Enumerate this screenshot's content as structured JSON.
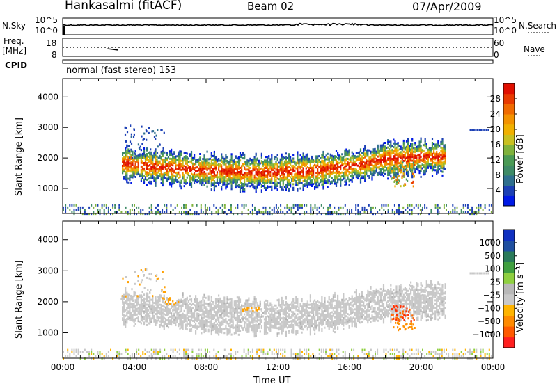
{
  "header": {
    "station": "Hankasalmi (fitACF)",
    "beam": "Beam 02",
    "date": "07/Apr/2009"
  },
  "top_panels": {
    "nsky_label": "N.Sky",
    "nsky_ticks": [
      "10^5",
      "10^0"
    ],
    "nsearch_label": "N.Search",
    "nsearch_ticks": [
      "10^5",
      "10^0"
    ],
    "freq_label": "Freq.",
    "freq_unit": "[MHz]",
    "freq_ticks": [
      "18",
      "8"
    ],
    "nave_label": "Nave",
    "nave_ticks": [
      "60",
      "0"
    ],
    "cpid_label": "CPID",
    "cpid_value": "normal (fast stereo) 153"
  },
  "colors": {
    "power_scale": [
      "#0019e6",
      "#1c40b5",
      "#2f6f8e",
      "#3e8a66",
      "#4a9a55",
      "#7fb23c",
      "#c8c020",
      "#f0b000",
      "#f39200",
      "#f06a00",
      "#e83a00",
      "#e00f00"
    ],
    "velocity_scale": [
      "#ff1f1f",
      "#ff5a00",
      "#ff8a00",
      "#ffb400",
      "#c8c8c8",
      "#b8b8b8",
      "#8fd040",
      "#40a040",
      "#2a7a5a",
      "#1f4fa0",
      "#1030c0"
    ]
  },
  "chart_data": [
    {
      "type": "heatmap",
      "panel": "power",
      "title": "",
      "ylabel": "Slant Range [km]",
      "xlabel": "",
      "y_ticks": [
        "1000",
        "2000",
        "3000",
        "4000"
      ],
      "ylim": [
        180,
        4600
      ],
      "colorbar_label": "Power [dB]",
      "colorbar_ticks": [
        "28",
        "24",
        "20",
        "16",
        "12",
        "8",
        "4"
      ],
      "colorbar_range": [
        0,
        32
      ],
      "echo_band": {
        "center_km": [
          [
            3.5,
            1850
          ],
          [
            5,
            1750
          ],
          [
            8,
            1620
          ],
          [
            11,
            1550
          ],
          [
            14,
            1620
          ],
          [
            16,
            1760
          ],
          [
            18,
            2000
          ],
          [
            19.5,
            2050
          ],
          [
            21.3,
            2080
          ]
        ],
        "width_km": 500
      }
    },
    {
      "type": "heatmap",
      "panel": "velocity",
      "title": "",
      "ylabel": "Slant Range [km]",
      "xlabel": "Time UT",
      "x_ticks": [
        "00:00",
        "04:00",
        "08:00",
        "12:00",
        "16:00",
        "20:00",
        "00:00"
      ],
      "y_ticks": [
        "1000",
        "2000",
        "3000",
        "4000"
      ],
      "ylim": [
        180,
        4600
      ],
      "xlim": [
        0,
        24
      ],
      "colorbar_label": "Velocity [m s⁻¹]",
      "colorbar_ticks": [
        "1000",
        "500",
        "100",
        "25",
        "−25",
        "−100",
        "−500",
        "−1000"
      ]
    }
  ]
}
